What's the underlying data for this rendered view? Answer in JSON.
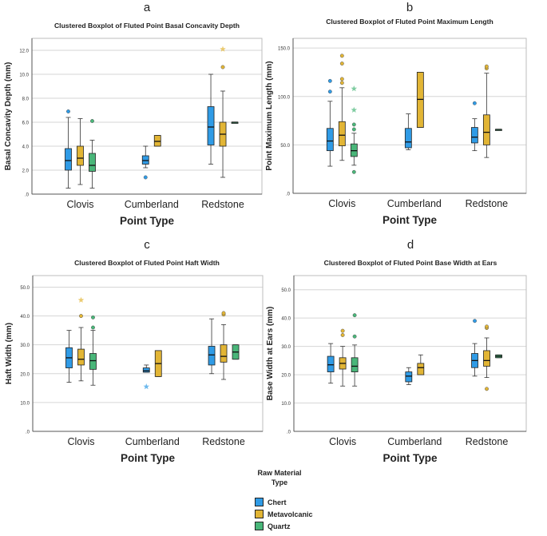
{
  "legend": {
    "title_line1": "Raw Material",
    "title_line2": "Type",
    "items": [
      {
        "label": "Chert",
        "color": "#2f9be6"
      },
      {
        "label": "Metavolcanic",
        "color": "#e2b535"
      },
      {
        "label": "Quartz",
        "color": "#49b679"
      }
    ]
  },
  "chart_data": [
    {
      "panel_letter": "a",
      "type": "boxplot",
      "title": "Clustered Boxplot of Fluted Point Basal Concavity Depth",
      "xlabel": "Point Type",
      "ylabel": "Basal Concavity Depth (mm)",
      "ylim": [
        0,
        13
      ],
      "yticks": [
        0,
        2,
        4,
        6,
        8,
        10,
        12
      ],
      "ytick_labels": [
        ".0",
        "2.0",
        "4.0",
        "6.0",
        "8.0",
        "10.0",
        "12.0"
      ],
      "categories": [
        "Clovis",
        "Cumberland",
        "Redstone"
      ],
      "groups": [
        {
          "category": "Clovis",
          "boxes": [
            {
              "series": "Chert",
              "whisker_low": 0.5,
              "q1": 2.0,
              "median": 2.8,
              "q3": 3.8,
              "whisker_high": 6.4,
              "outliers": [
                6.9
              ],
              "extremes": []
            },
            {
              "series": "Metavolcanic",
              "whisker_low": 0.8,
              "q1": 2.4,
              "median": 3.0,
              "q3": 4.0,
              "whisker_high": 6.3,
              "outliers": [],
              "extremes": []
            },
            {
              "series": "Quartz",
              "whisker_low": 0.5,
              "q1": 1.9,
              "median": 2.4,
              "q3": 3.4,
              "whisker_high": 4.5,
              "outliers": [
                6.1
              ],
              "extremes": []
            }
          ]
        },
        {
          "category": "Cumberland",
          "boxes": [
            {
              "series": "Chert",
              "whisker_low": 2.2,
              "q1": 2.5,
              "median": 2.8,
              "q3": 3.2,
              "whisker_high": 4.0,
              "outliers": [
                1.4
              ],
              "extremes": []
            },
            {
              "series": "Metavolcanic",
              "whisker_low": 4.0,
              "q1": 4.0,
              "median": 4.4,
              "q3": 4.9,
              "whisker_high": 4.9,
              "outliers": [],
              "extremes": []
            }
          ]
        },
        {
          "category": "Redstone",
          "boxes": [
            {
              "series": "Chert",
              "whisker_low": 2.5,
              "q1": 4.1,
              "median": 5.6,
              "q3": 7.3,
              "whisker_high": 10.0,
              "outliers": [],
              "extremes": []
            },
            {
              "series": "Metavolcanic",
              "whisker_low": 1.4,
              "q1": 4.0,
              "median": 5.0,
              "q3": 6.0,
              "whisker_high": 8.6,
              "outliers": [
                10.6
              ],
              "extremes": [
                12.1
              ]
            },
            {
              "series": "Quartz",
              "whisker_low": 6.0,
              "q1": 6.0,
              "median": 6.0,
              "q3": 6.0,
              "whisker_high": 6.0,
              "outliers": [],
              "extremes": []
            }
          ]
        }
      ]
    },
    {
      "panel_letter": "b",
      "type": "boxplot",
      "title": "Clustered Boxplot of Fluted Point Maximum Length",
      "xlabel": "Point Type",
      "ylabel": "Point Maximum Length (mm)",
      "ylim": [
        0,
        160
      ],
      "yticks": [
        0,
        50,
        100,
        150
      ],
      "ytick_labels": [
        ".0",
        "50.0",
        "100.0",
        "150.0"
      ],
      "categories": [
        "Clovis",
        "Cumberland",
        "Redstone"
      ],
      "groups": [
        {
          "category": "Clovis",
          "boxes": [
            {
              "series": "Chert",
              "whisker_low": 28,
              "q1": 44,
              "median": 54,
              "q3": 67,
              "whisker_high": 95,
              "outliers": [
                105,
                116
              ],
              "extremes": []
            },
            {
              "series": "Metavolcanic",
              "whisker_low": 34,
              "q1": 49,
              "median": 60,
              "q3": 74,
              "whisker_high": 109,
              "outliers": [
                114,
                118,
                134,
                142
              ],
              "extremes": []
            },
            {
              "series": "Quartz",
              "whisker_low": 29,
              "q1": 38,
              "median": 44,
              "q3": 51,
              "whisker_high": 62,
              "outliers": [
                66,
                71,
                22
              ],
              "extremes": [
                86,
                108
              ]
            }
          ]
        },
        {
          "category": "Cumberland",
          "boxes": [
            {
              "series": "Chert",
              "whisker_low": 45,
              "q1": 47,
              "median": 53,
              "q3": 67,
              "whisker_high": 82,
              "outliers": [],
              "extremes": []
            },
            {
              "series": "Metavolcanic",
              "whisker_low": 68,
              "q1": 68,
              "median": 97,
              "q3": 125,
              "whisker_high": 125,
              "outliers": [],
              "extremes": []
            }
          ]
        },
        {
          "category": "Redstone",
          "boxes": [
            {
              "series": "Chert",
              "whisker_low": 44,
              "q1": 52,
              "median": 58,
              "q3": 68,
              "whisker_high": 77,
              "outliers": [
                93
              ],
              "extremes": []
            },
            {
              "series": "Metavolcanic",
              "whisker_low": 37,
              "q1": 50,
              "median": 63,
              "q3": 81,
              "whisker_high": 124,
              "outliers": [
                129,
                131
              ],
              "extremes": []
            },
            {
              "series": "Quartz",
              "whisker_low": 66,
              "q1": 66,
              "median": 66,
              "q3": 66,
              "whisker_high": 66,
              "outliers": [],
              "extremes": []
            }
          ]
        }
      ]
    },
    {
      "panel_letter": "c",
      "type": "boxplot",
      "title": "Clustered Boxplot of Fluted Point Haft Width",
      "xlabel": "Point Type",
      "ylabel": "Haft Width (mm)",
      "ylim": [
        0,
        54
      ],
      "yticks": [
        0,
        10,
        20,
        30,
        40,
        50
      ],
      "ytick_labels": [
        ".0",
        "10.0",
        "20.0",
        "30.0",
        "40.0",
        "50.0"
      ],
      "categories": [
        "Clovis",
        "Cumberland",
        "Redstone"
      ],
      "groups": [
        {
          "category": "Clovis",
          "boxes": [
            {
              "series": "Chert",
              "whisker_low": 17,
              "q1": 22,
              "median": 25.5,
              "q3": 29,
              "whisker_high": 35,
              "outliers": [],
              "extremes": []
            },
            {
              "series": "Metavolcanic",
              "whisker_low": 17.5,
              "q1": 23,
              "median": 25,
              "q3": 28.5,
              "whisker_high": 36,
              "outliers": [
                40
              ],
              "extremes": [
                45.5
              ]
            },
            {
              "series": "Quartz",
              "whisker_low": 16,
              "q1": 21.5,
              "median": 24.5,
              "q3": 27,
              "whisker_high": 35,
              "outliers": [
                36,
                39.5
              ],
              "extremes": []
            }
          ]
        },
        {
          "category": "Cumberland",
          "boxes": [
            {
              "series": "Chert",
              "whisker_low": 20.5,
              "q1": 20.5,
              "median": 21,
              "q3": 22,
              "whisker_high": 23,
              "outliers": [],
              "extremes": [
                15.5
              ]
            },
            {
              "series": "Metavolcanic",
              "whisker_low": 19,
              "q1": 19,
              "median": 23.5,
              "q3": 28,
              "whisker_high": 28,
              "outliers": [],
              "extremes": []
            }
          ]
        },
        {
          "category": "Redstone",
          "boxes": [
            {
              "series": "Chert",
              "whisker_low": 20,
              "q1": 23,
              "median": 26.5,
              "q3": 29.5,
              "whisker_high": 39,
              "outliers": [],
              "extremes": []
            },
            {
              "series": "Metavolcanic",
              "whisker_low": 18,
              "q1": 24,
              "median": 26,
              "q3": 30,
              "whisker_high": 37,
              "outliers": [
                40.5,
                41
              ],
              "extremes": []
            },
            {
              "series": "Quartz",
              "whisker_low": 25,
              "q1": 25,
              "median": 27.5,
              "q3": 30,
              "whisker_high": 30,
              "outliers": [],
              "extremes": []
            }
          ]
        }
      ]
    },
    {
      "panel_letter": "d",
      "type": "boxplot",
      "title": "Clustered Boxplot of Fluted Point Base Width at Ears",
      "xlabel": "Point Type",
      "ylabel": "Base Width at Ears (mm)",
      "ylim": [
        0,
        55
      ],
      "yticks": [
        0,
        10,
        20,
        30,
        40,
        50
      ],
      "ytick_labels": [
        ".0",
        "10.0",
        "20.0",
        "30.0",
        "40.0",
        "50.0"
      ],
      "categories": [
        "Clovis",
        "Cumberland",
        "Redstone"
      ],
      "groups": [
        {
          "category": "Clovis",
          "boxes": [
            {
              "series": "Chert",
              "whisker_low": 17,
              "q1": 21,
              "median": 23.5,
              "q3": 26.5,
              "whisker_high": 31,
              "outliers": [],
              "extremes": []
            },
            {
              "series": "Metavolcanic",
              "whisker_low": 16,
              "q1": 22,
              "median": 24,
              "q3": 26,
              "whisker_high": 30,
              "outliers": [
                34,
                35.5
              ],
              "extremes": []
            },
            {
              "series": "Quartz",
              "whisker_low": 16,
              "q1": 21,
              "median": 23,
              "q3": 26,
              "whisker_high": 30.5,
              "outliers": [
                33.5,
                41
              ],
              "extremes": []
            }
          ]
        },
        {
          "category": "Cumberland",
          "boxes": [
            {
              "series": "Chert",
              "whisker_low": 16.5,
              "q1": 17.5,
              "median": 19.5,
              "q3": 21,
              "whisker_high": 22.5,
              "outliers": [],
              "extremes": []
            },
            {
              "series": "Metavolcanic",
              "whisker_low": 20,
              "q1": 20,
              "median": 22.5,
              "q3": 24,
              "whisker_high": 27,
              "outliers": [],
              "extremes": []
            }
          ]
        },
        {
          "category": "Redstone",
          "boxes": [
            {
              "series": "Chert",
              "whisker_low": 19.5,
              "q1": 22.5,
              "median": 25,
              "q3": 27.5,
              "whisker_high": 31,
              "outliers": [
                39
              ],
              "extremes": []
            },
            {
              "series": "Metavolcanic",
              "whisker_low": 19,
              "q1": 23,
              "median": 25,
              "q3": 28.5,
              "whisker_high": 33,
              "outliers": [
                36.5,
                37,
                15
              ],
              "extremes": []
            },
            {
              "series": "Quartz",
              "whisker_low": 26,
              "q1": 26,
              "median": 26.5,
              "q3": 27,
              "whisker_high": 27,
              "outliers": [],
              "extremes": []
            }
          ]
        }
      ]
    }
  ]
}
